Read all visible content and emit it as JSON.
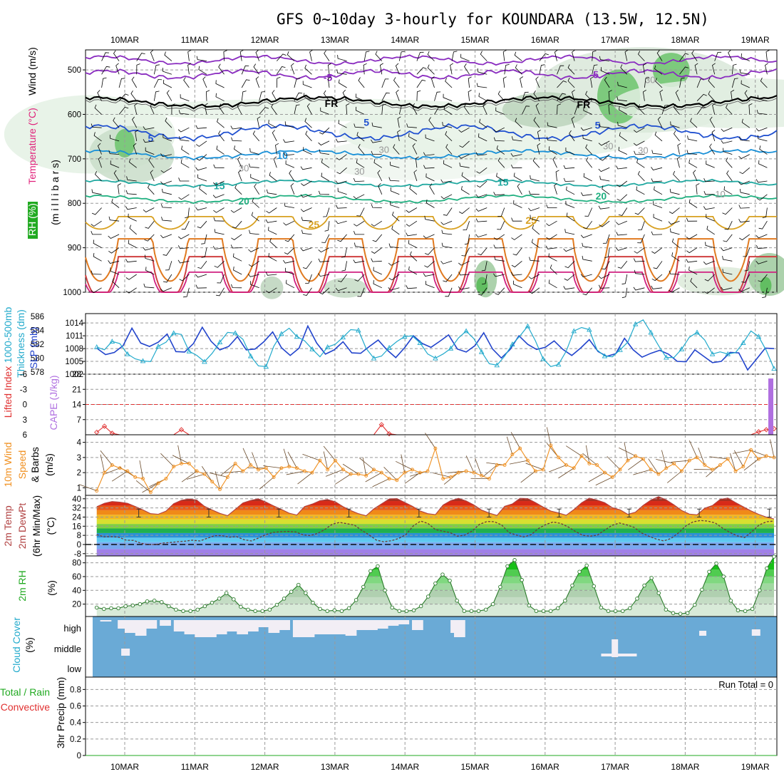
{
  "title": "GFS 0~10day 3-hourly for KOUNDARA (13.5W, 12.5N)",
  "colors": {
    "wind": "#000000",
    "temperature_word": "#e0207a",
    "rh": "#22aa22",
    "thickness": "#22aacc",
    "slp": "#2244cc",
    "lifted": "#e03030",
    "cape": "#b070e0",
    "wind10": "#f09020",
    "temp2m": "#b04040",
    "dewpt": "#b04040",
    "rh2m": "#22aa22",
    "cloud_bg": "#6aaad6",
    "cloud_fill": "#f2eef5",
    "precip_total": "#22aa22",
    "precip_conv": "#e03030"
  },
  "chart_data": {
    "type": "meteogram",
    "dates": [
      "10MAR",
      "11MAR",
      "12MAR",
      "13MAR",
      "14MAR",
      "15MAR",
      "16MAR",
      "17MAR",
      "18MAR",
      "19MAR"
    ],
    "x_range_days": [
      -0.43,
      9.3
    ],
    "panels": {
      "upper_air": {
        "ylabel_parts": [
          "Wind",
          "(m/s)",
          "Temperature",
          "(°C)",
          "RH",
          "(%)"
        ],
        "axis_label": "(m i l l i b a r s)",
        "y_ticks": [
          "500",
          "600",
          "700",
          "800",
          "900",
          "1000"
        ],
        "ylim": [
          455,
          1000
        ],
        "isotherm_labels": [
          {
            "text": "-5",
            "day": 2.9,
            "p": 517,
            "color": "#8a2cc0"
          },
          {
            "text": "-5",
            "day": 6.7,
            "p": 510,
            "color": "#8a2cc0"
          },
          {
            "text": "FR",
            "day": 2.95,
            "p": 575,
            "color": "#000000"
          },
          {
            "text": "FR",
            "day": 6.55,
            "p": 578,
            "color": "#000000"
          },
          {
            "text": "5",
            "day": 0.37,
            "p": 654,
            "color": "#2050d0"
          },
          {
            "text": "5",
            "day": 3.45,
            "p": 618,
            "color": "#2050d0"
          },
          {
            "text": "5",
            "day": 6.75,
            "p": 624,
            "color": "#2050d0"
          },
          {
            "text": "10",
            "day": 2.25,
            "p": 692,
            "color": "#1890d8"
          },
          {
            "text": "15",
            "day": 1.35,
            "p": 760,
            "color": "#20a8a0"
          },
          {
            "text": "15",
            "day": 5.4,
            "p": 752,
            "color": "#20a8a0"
          },
          {
            "text": "20",
            "day": 1.7,
            "p": 795,
            "color": "#20b080"
          },
          {
            "text": "20",
            "day": 6.8,
            "p": 784,
            "color": "#20b080"
          },
          {
            "text": "25",
            "day": 2.7,
            "p": 848,
            "color": "#d8a020"
          },
          {
            "text": "25",
            "day": 5.8,
            "p": 838,
            "color": "#d8a020"
          }
        ],
        "rh_labels": [
          {
            "text": "30",
            "day": 7.5,
            "p": 523
          },
          {
            "text": "30",
            "day": 3.7,
            "p": 680
          },
          {
            "text": "30",
            "day": 3.35,
            "p": 729
          },
          {
            "text": "30",
            "day": 1.7,
            "p": 722
          },
          {
            "text": "30",
            "day": 6.9,
            "p": 672
          },
          {
            "text": "30",
            "day": 7.4,
            "p": 682
          },
          {
            "text": "10",
            "day": 8.5,
            "p": 780
          }
        ]
      },
      "slp_thickness": {
        "left_labels": [
          "1000-500mb",
          "Thickness (dm)",
          "SLP (mb)"
        ],
        "thickness_ticks": [
          "586",
          "584",
          "582",
          "580",
          "578"
        ],
        "slp_ticks": [
          "1014",
          "1011",
          "1008",
          "1005",
          "1002"
        ],
        "slp_range_mb": [
          1002,
          1016.2
        ],
        "thickness_range_dm": [
          577.7,
          586.4
        ],
        "slp_mb": [
          1008.1,
          1006.6,
          1007.1,
          1008.7,
          1012.8,
          1009.3,
          1008.5,
          1009.5,
          1011.4,
          1007.3,
          1007.2,
          1009.2,
          1013.0,
          1009.7,
          1007.7,
          1008.5,
          1010.8,
          1007.7,
          1007.9,
          1009.6,
          1011.9,
          1008.2,
          1006.4,
          1008.1,
          1013.3,
          1009.3,
          1006.7,
          1007.7,
          1009.6,
          1007.0,
          1006.9,
          1008.5,
          1010.0,
          1007.7,
          1005.9,
          1008.2,
          1011.0,
          1009.2,
          1008.3,
          1009.7,
          1011.2,
          1007.9,
          1007.2,
          1008.7,
          1011.7,
          1007.9,
          1005.8,
          1007.8,
          1011.0,
          1009.0,
          1007.8,
          1008.3,
          1009.8,
          1007.8,
          1006.4,
          1008.1,
          1010.1,
          1007.3,
          1006.2,
          1006.8,
          1010.4,
          1007.7,
          1006.0,
          1006.9,
          1007.6,
          1006.7,
          1005.0,
          1004.9,
          1007.7,
          1006.2,
          1004.7,
          1005.0,
          1007.1,
          1007.0,
          1003.0,
          1005.5,
          1008.1,
          1008.0
        ],
        "thickness_dm": [
          581.6,
          581.2,
          582.4,
          582.1,
          580.6,
          579.9,
          579.6,
          579.5,
          581.7,
          582.3,
          583.6,
          583.4,
          581.0,
          580.4,
          579.5,
          580.7,
          582.3,
          583.7,
          583.6,
          582.7,
          580.3,
          578.9,
          578.8,
          581.7,
          583.5,
          584.3,
          583.1,
          582.5,
          581.3,
          580.2,
          581.6,
          582.0,
          583.0,
          584.1,
          584.0,
          581.4,
          580.0,
          580.3,
          581.5,
          582.4,
          583.1,
          583.2,
          582.2,
          580.6,
          580.0,
          580.6,
          581.4,
          582.9,
          583.9,
          582.8,
          580.9,
          579.2,
          579.0,
          580.3,
          582.0,
          583.2,
          584.6,
          582.5,
          579.9,
          578.8,
          579.1,
          581.0,
          583.9,
          584.4,
          584.1,
          581.2,
          580.3,
          580.2,
          581.2,
          582.3,
          584.9,
          585.5,
          583.7,
          581.8,
          580.1,
          580.1,
          581.3,
          583.0,
          583.7,
          582.6,
          580.6,
          580.9,
          580.6,
          580.8,
          582.2,
          583.9,
          583.1,
          581.1,
          578.5
        ]
      },
      "cape_lifted": {
        "left_labels": [
          "Lifted Index",
          "CAPE (J/kg)"
        ],
        "lifted_ticks": [
          "-6",
          "-3",
          "0",
          "3",
          "6"
        ],
        "cape_ticks": [
          "28",
          "21",
          "14",
          "7"
        ],
        "lifted_range": [
          -6,
          6
        ],
        "cape_range": [
          0,
          28
        ],
        "lifted_index": [
          5.5,
          4.3,
          5.7,
          6.0,
          6.0,
          6.0,
          6.0,
          6.0,
          6.0,
          6.0,
          6.0,
          5.0,
          6.0,
          6.0,
          6.0,
          6.0,
          6.0,
          6.0,
          6.0,
          6.0,
          6.0,
          6.0,
          6.0,
          6.0,
          6.0,
          6.0,
          6.0,
          6.0,
          6.0,
          6.0,
          6.0,
          6.0,
          6.0,
          6.0,
          6.0,
          6.0,
          6.0,
          4.0,
          5.8,
          6.0,
          6.0,
          6.0,
          6.0,
          6.0,
          6.0,
          6.0,
          6.0,
          6.0,
          6.0,
          6.0,
          6.0,
          6.0,
          6.0,
          6.0,
          6.0,
          6.0,
          6.0,
          6.0,
          6.0,
          6.0,
          6.0,
          6.0,
          6.0,
          6.0,
          6.0,
          6.0,
          6.0,
          6.0,
          6.0,
          6.0,
          6.0,
          6.0,
          6.0,
          6.0,
          6.0,
          6.0,
          6.0,
          6.0,
          6.0,
          6.0,
          6.0,
          6.0,
          6.0,
          6.0,
          6.0,
          6.0,
          5.4,
          5.0,
          4.8
        ],
        "cape_jkg": [
          26.0
        ]
      },
      "wind10m": {
        "left_labels": [
          "10m Wind",
          "Speed",
          "& Barbs",
          "(m/s)"
        ],
        "y_ticks": [
          "4",
          "3",
          "2",
          "1"
        ],
        "ylim": [
          0.5,
          4.5
        ],
        "speed_ms": [
          0.8,
          2.0,
          2.5,
          2.3,
          2.1,
          1.7,
          1.6,
          0.7,
          1.3,
          1.6,
          2.4,
          2.6,
          2.6,
          2.1,
          1.9,
          1.4,
          0.9,
          1.7,
          2.6,
          2.1,
          2.5,
          2.2,
          2.3,
          1.7,
          2.3,
          2.4,
          2.3,
          2.1,
          2.0,
          2.8,
          2.2,
          2.8,
          2.2,
          1.9,
          1.9,
          1.8,
          2.2,
          2.0,
          1.6,
          1.5,
          2.0,
          2.2,
          2.0,
          2.1,
          3.6,
          1.6,
          1.7,
          2.0,
          2.1,
          2.0,
          1.8,
          1.6,
          2.5,
          2.5,
          3.2,
          3.6,
          2.8,
          2.1,
          2.2,
          3.8,
          3.0,
          2.5,
          2.3,
          3.1,
          2.6,
          2.5,
          2.0,
          1.7,
          2.2,
          2.8,
          3.1,
          2.9,
          2.2,
          1.9,
          2.3,
          2.6,
          2.1,
          2.8,
          3.0,
          2.5,
          2.2,
          2.5,
          2.9,
          2.1,
          2.4,
          3.5,
          2.9,
          3.1,
          3.0
        ]
      },
      "temp2m": {
        "left_labels": [
          "2m Temp",
          "2m DewPt",
          "(6hr Min/Max)",
          "(°C)"
        ],
        "y_ticks": [
          "40",
          "32",
          "24",
          "16",
          "8",
          "0",
          "-8"
        ],
        "ylim": [
          -10,
          43
        ],
        "temp_c": [
          33.0,
          36.1,
          37.6,
          37.0,
          36.1,
          33.3,
          30.3,
          27.0,
          26.5,
          29.2,
          35.7,
          38.7,
          39.8,
          38.9,
          33.4,
          30.2,
          27.2,
          25.2,
          30.7,
          36.4,
          38.5,
          40.0,
          37.1,
          33.7,
          30.7,
          27.4,
          25.8,
          33.2,
          35.4,
          38.3,
          39.3,
          37.4,
          33.1,
          29.7,
          27.0,
          25.1,
          31.2,
          35.5,
          39.8,
          40.2,
          36.8,
          33.5,
          29.4,
          27.0,
          26.1,
          34.5,
          38.4,
          40.4,
          38.1,
          34.6,
          30.1,
          27.5,
          25.4,
          33.4,
          35.5,
          40.4,
          40.2,
          36.7,
          32.8,
          29.3,
          27.6,
          25.6,
          30.6,
          36.5,
          40.5,
          38.9,
          36.6,
          32.2,
          30.4,
          26.4,
          28.3,
          34.2,
          38.9,
          41.8,
          39.0,
          34.7,
          29.8,
          26.6,
          26.0,
          31.8,
          34.1,
          39.5,
          40.6,
          36.7,
          33.0,
          29.5,
          26.4,
          24.0,
          22.3
        ],
        "dewpt_c": [
          8.6,
          6.7,
          6.9,
          6.4,
          3.8,
          3.6,
          1.1,
          0.0,
          0.0,
          1.3,
          1.7,
          2.5,
          2.9,
          3.8,
          3.1,
          5.4,
          7.7,
          7.8,
          6.4,
          6.9,
          4.2,
          3.1,
          5.8,
          8.7,
          10.6,
          11.2,
          11.4,
          11.0,
          8.5,
          7.8,
          9.7,
          13.2,
          17.8,
          19.3,
          18.2,
          17.0,
          12.4,
          8.4,
          3.8,
          2.4,
          3.3,
          5.3,
          8.6,
          16.3,
          20.5,
          18.4,
          13.1,
          11.7,
          10.4,
          7.3,
          8.2,
          11.8,
          17.7,
          20.1,
          19.9,
          17.1,
          10.4,
          8.3,
          6.6,
          8.5,
          14.0,
          17.5,
          19.7,
          18.5,
          15.5,
          11.5,
          8.1,
          7.3,
          8.2,
          12.6,
          16.8,
          18.8,
          17.2,
          15.0,
          10.1,
          7.2,
          4.8,
          3.1,
          5.3,
          10.0,
          16.2,
          19.8,
          21.0,
          20.5,
          18.9,
          14.4,
          10.6,
          7.5,
          6.0,
          11.3,
          17.2,
          19.9,
          20.5
        ]
      },
      "rh2m": {
        "left_label": "2m RH",
        "unit": "(%)",
        "y_ticks": [
          "80",
          "60",
          "40",
          "20"
        ],
        "ylim": [
          2,
          90
        ],
        "rh_pct": [
          15,
          13,
          14,
          14,
          17,
          18,
          20,
          24,
          25,
          23,
          17,
          12,
          10,
          10,
          12,
          17,
          22,
          28,
          36,
          27,
          16,
          12,
          10,
          10,
          12,
          19,
          28,
          38,
          48,
          36,
          22,
          13,
          10,
          11,
          10,
          14,
          26,
          45,
          68,
          75,
          40,
          15,
          10,
          10,
          11,
          17,
          31,
          50,
          63,
          54,
          25,
          10,
          10,
          10,
          12,
          20,
          45,
          75,
          84,
          55,
          18,
          10,
          10,
          10,
          14,
          25,
          47,
          67,
          76,
          46,
          15,
          10,
          10,
          10,
          14,
          28,
          47,
          58,
          36,
          12,
          7,
          6,
          7,
          19,
          41,
          67,
          79,
          60,
          25,
          11,
          10,
          13,
          40,
          72,
          89
        ]
      },
      "cloud_cover": {
        "left_labels": [
          "Cloud Cover",
          "(%)"
        ],
        "levels": [
          "high",
          "middle",
          "low"
        ]
      },
      "precip": {
        "left_labels": [
          "Total / Rain",
          "Convective",
          "3hr Precip (mm)"
        ],
        "y_ticks": [
          "0.8",
          "0.6",
          "0.4",
          "0.2",
          "0"
        ],
        "ylim": [
          0,
          0.95
        ],
        "run_total_label": "Run Total = 0",
        "total_mm": 0,
        "convective_mm": 0
      }
    }
  }
}
